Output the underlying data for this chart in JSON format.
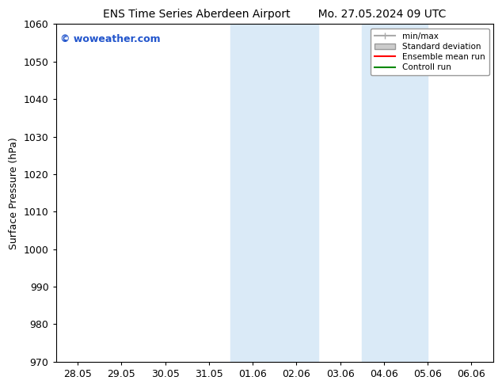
{
  "title_left": "ENS Time Series Aberdeen Airport",
  "title_right": "Mo. 27.05.2024 09 UTC",
  "ylabel": "Surface Pressure (hPa)",
  "ylim": [
    970,
    1060
  ],
  "yticks": [
    970,
    980,
    990,
    1000,
    1010,
    1020,
    1030,
    1040,
    1050,
    1060
  ],
  "xtick_labels": [
    "28.05",
    "29.05",
    "30.05",
    "31.05",
    "01.06",
    "02.06",
    "03.06",
    "04.06",
    "05.06",
    "06.06"
  ],
  "xtick_positions": [
    0,
    1,
    2,
    3,
    4,
    5,
    6,
    7,
    8,
    9
  ],
  "xlim": [
    -0.5,
    9.5
  ],
  "shaded_bands": [
    {
      "x_start": 3.5,
      "x_end": 5.5,
      "color": "#daeaf7"
    },
    {
      "x_start": 6.5,
      "x_end": 8.0,
      "color": "#daeaf7"
    }
  ],
  "watermark": "© woweather.com",
  "watermark_color": "#2255cc",
  "legend_labels": [
    "min/max",
    "Standard deviation",
    "Ensemble mean run",
    "Controll run"
  ],
  "legend_colors": [
    "#aaaaaa",
    "#cccccc",
    "#ff0000",
    "#008800"
  ],
  "bg_color": "#ffffff",
  "grid_color": "#cccccc",
  "title_fontsize": 10,
  "axis_fontsize": 9,
  "tick_fontsize": 9
}
